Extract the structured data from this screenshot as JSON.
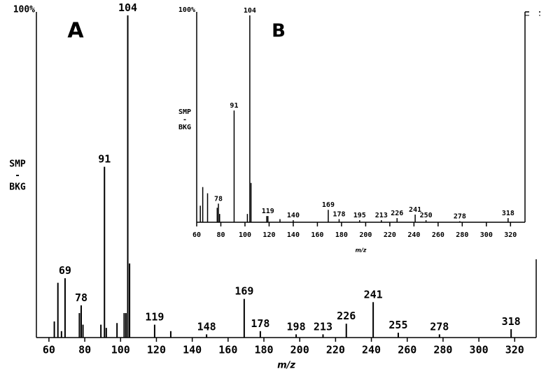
{
  "chart_data": [
    {
      "type": "bar",
      "panel": "A",
      "xlabel": "m/z",
      "ylabel": [
        "SMP",
        "-",
        "BKG"
      ],
      "x": [
        63,
        65,
        67,
        69,
        77,
        78,
        79,
        89,
        91,
        92,
        98,
        102,
        103,
        104,
        105,
        119,
        128,
        148,
        169,
        178,
        198,
        213,
        226,
        241,
        255,
        278,
        318
      ],
      "values": [
        5,
        17,
        2,
        18.4,
        7.6,
        10,
        4,
        4,
        53,
        3,
        4.5,
        7.6,
        7.6,
        100,
        23,
        4,
        2,
        1,
        12,
        2,
        1,
        1,
        4.3,
        11,
        1.5,
        1,
        2.6
      ],
      "labels": [
        null,
        null,
        null,
        "69",
        null,
        "78",
        null,
        null,
        "91",
        null,
        null,
        null,
        null,
        "104",
        null,
        "119",
        null,
        "148",
        "169",
        "178",
        "198",
        "213",
        "226",
        "241",
        "255",
        "278",
        "318"
      ],
      "color": "#000000",
      "xlim": [
        53,
        332
      ],
      "ylim": [
        0,
        100
      ],
      "xticks": [
        60,
        80,
        100,
        120,
        140,
        160,
        180,
        200,
        220,
        240,
        260,
        280,
        300,
        320
      ],
      "yticks": [
        {
          "value": 100,
          "label": "100%"
        }
      ]
    },
    {
      "type": "bar",
      "panel": "B",
      "xlabel": "m/z",
      "ylabel": [
        "SMP",
        "-",
        "BKG"
      ],
      "x": [
        63,
        65,
        69,
        77,
        78,
        79,
        91,
        102,
        104,
        105,
        118,
        119,
        129,
        140,
        169,
        178,
        195,
        213,
        226,
        241,
        250,
        278,
        318
      ],
      "values": [
        8,
        17,
        14,
        7,
        9,
        4,
        54,
        4,
        100,
        19,
        3,
        3,
        1.5,
        1,
        6,
        1.5,
        1,
        1,
        2,
        3.7,
        1,
        0.5,
        2
      ],
      "labels": [
        null,
        null,
        null,
        null,
        "78",
        null,
        "91",
        null,
        "104",
        null,
        null,
        "119",
        null,
        "140",
        "169",
        "178",
        "195",
        "213",
        "226",
        "241",
        "250",
        "278",
        "318"
      ],
      "color": "#000000",
      "xlim": [
        60,
        332
      ],
      "ylim": [
        0,
        100
      ],
      "xticks": [
        60,
        80,
        100,
        120,
        140,
        160,
        180,
        200,
        220,
        240,
        260,
        280,
        300,
        320
      ],
      "yticks": [
        {
          "value": 100,
          "label": "100%"
        }
      ]
    }
  ]
}
